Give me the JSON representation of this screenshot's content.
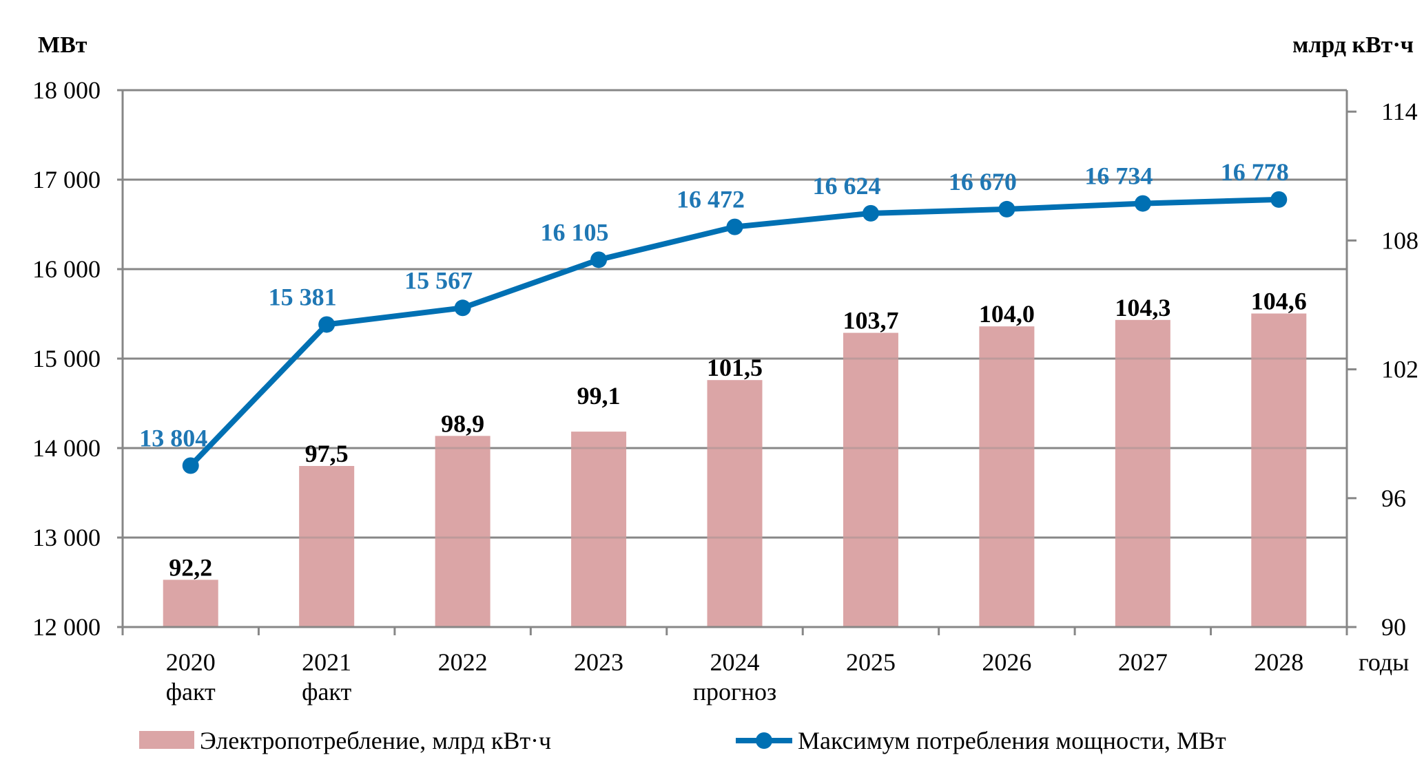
{
  "chart_data": {
    "type": "bar+line",
    "title": "",
    "categories": [
      [
        "2020",
        "факт"
      ],
      [
        "2021",
        "факт"
      ],
      [
        "2022"
      ],
      [
        "2023"
      ],
      [
        "2024",
        "прогноз"
      ],
      [
        "2025"
      ],
      [
        "2026"
      ],
      [
        "2027"
      ],
      [
        "2028"
      ]
    ],
    "xlabel": "годы",
    "y_left": {
      "label": "МВт",
      "range": [
        12000,
        18000
      ],
      "ticks": [
        12000,
        13000,
        14000,
        15000,
        16000,
        17000,
        18000
      ],
      "tick_labels": [
        "12 000",
        "13 000",
        "14 000",
        "15 000",
        "16 000",
        "17 000",
        "18 000"
      ],
      "grid": true
    },
    "y_right": {
      "label": "млрд кВт·ч",
      "range": [
        90,
        115
      ],
      "ticks": [
        90,
        96,
        102,
        108,
        114
      ],
      "tick_labels": [
        "90",
        "96",
        "102",
        "108",
        "114"
      ]
    },
    "series": [
      {
        "name": "Электропотребление, млрд кВт·ч",
        "type": "bar",
        "axis": "right",
        "color": "#dba5a6",
        "values": [
          92.2,
          97.5,
          98.9,
          99.1,
          101.5,
          103.7,
          104.0,
          104.3,
          104.6
        ],
        "labels": [
          "92,2",
          "97,5",
          "98,9",
          "99,1",
          "101,5",
          "103,7",
          "104,0",
          "104,3",
          "104,6"
        ],
        "label_color": "#000000"
      },
      {
        "name": "Максимум потребления мощности, МВт",
        "type": "line",
        "axis": "left",
        "color": "#0070b3",
        "marker": "circle",
        "values": [
          13804,
          15381,
          15567,
          16105,
          16472,
          16624,
          16670,
          16734,
          16778
        ],
        "labels": [
          "13 804",
          "15 381",
          "15 567",
          "16 105",
          "16 472",
          "16 624",
          "16 670",
          "16 734",
          "16 778"
        ],
        "label_color": "#1f77b4"
      }
    ],
    "legend": {
      "placement": "bottom",
      "items": [
        {
          "label": "Электропотребление, млрд кВт·ч",
          "symbol": "square",
          "color": "#dba5a6"
        },
        {
          "label": "Максимум потребления мощности, МВт",
          "symbol": "line-marker",
          "color": "#0070b3"
        }
      ]
    },
    "grid_color": "#878787"
  }
}
